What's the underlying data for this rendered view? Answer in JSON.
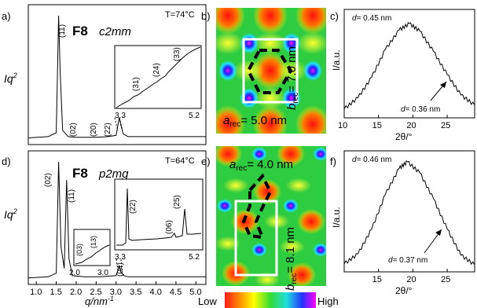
{
  "panels": {
    "a": {
      "label": "a)",
      "material": "F8",
      "phase": "c2mm",
      "temperature": "T=74°C",
      "ylabel": "Iq",
      "ylabel_sup": "2",
      "peaks": [
        "(11)",
        "(02)",
        "(20)",
        "(22)"
      ],
      "inset": {
        "peaks": [
          "(31)",
          "(24)",
          "(33)"
        ],
        "xmin": "3.3",
        "xmax": "5.2"
      }
    },
    "b": {
      "label": "b)",
      "a_rec": "= 5.0 nm",
      "b_rec": "= 7.0 nm",
      "a_sym": "a",
      "b_sym": "b",
      "sub": "rec"
    },
    "c": {
      "label": "c)",
      "d_peak": "= 0.45 nm",
      "d_shoulder": "= 0.36 nm",
      "d_sym": "d",
      "ylabel": "I/a.u.",
      "xlabel": "2θ/°"
    },
    "d": {
      "label": "d)",
      "material": "F8",
      "phase": "p2mg",
      "temperature": "T=64°C",
      "ylabel": "Iq",
      "ylabel_sup": "2",
      "peaks": [
        "(02)",
        "(11)",
        "(04)"
      ],
      "inset_left": {
        "peaks": [
          "(03)",
          "(13)"
        ],
        "xmin": "2.0",
        "xmax": "3.0"
      },
      "inset_right": {
        "peaks": [
          "(22)",
          "(06)",
          "(25)"
        ],
        "xmin": "3.3",
        "xmax": "5.2"
      },
      "xlabel": "q/nm",
      "xlabel_sup": "-1"
    },
    "e": {
      "label": "e)",
      "a_rec": "= 4.0 nm",
      "b_rec": "= 8.1 nm",
      "a_sym": "a",
      "b_sym": "b",
      "sub": "rec"
    },
    "f": {
      "label": "f)",
      "d_peak": "= 0.46 nm",
      "d_shoulder": "= 0.37 nm",
      "d_sym": "d",
      "ylabel": "I/a.u.",
      "xlabel": "2θ/°"
    }
  },
  "colorbar": {
    "low": "Low",
    "high": "High"
  },
  "chart_data": [
    {
      "type": "line",
      "panel": "a",
      "xlim": [
        0.8,
        5.25
      ],
      "series": [
        {
          "x": [
            0.8,
            1.3,
            1.5,
            1.56,
            1.6,
            1.66,
            1.8,
            2.0,
            2.2,
            2.5,
            2.8,
            3.0,
            3.08,
            3.12,
            3.18,
            3.3,
            3.6,
            4.0,
            4.5,
            5.0,
            5.25
          ],
          "y": [
            0.04,
            0.05,
            0.08,
            1.0,
            0.55,
            0.1,
            0.05,
            0.045,
            0.045,
            0.045,
            0.05,
            0.06,
            0.2,
            0.14,
            0.07,
            0.05,
            0.05,
            0.05,
            0.05,
            0.05,
            0.05
          ]
        }
      ]
    },
    {
      "type": "line",
      "panel": "c",
      "xlabel": "2θ/°",
      "ylabel": "I/a.u.",
      "xlim": [
        10,
        29
      ],
      "xticks": [
        10,
        15,
        20,
        25
      ],
      "series": [
        {
          "x": [
            10,
            12,
            14,
            16,
            18,
            19.5,
            21,
            23,
            25,
            27,
            29
          ],
          "y": [
            0.08,
            0.2,
            0.42,
            0.72,
            0.93,
            1.0,
            0.92,
            0.7,
            0.45,
            0.23,
            0.12
          ]
        }
      ]
    },
    {
      "type": "line",
      "panel": "d",
      "xlabel": "q/nm-1",
      "xlim": [
        0.8,
        5.25
      ],
      "xticks": [
        1.0,
        1.5,
        2.0,
        2.5,
        3.0,
        3.5,
        4.0,
        4.5,
        5.0
      ],
      "series": [
        {
          "x": [
            0.8,
            1.3,
            1.5,
            1.56,
            1.62,
            1.7,
            1.76,
            1.82,
            1.9,
            2.2,
            2.6,
            3.0,
            3.08,
            3.12,
            3.2,
            3.3,
            3.6,
            4.0,
            4.5,
            5.0,
            5.25
          ],
          "y": [
            0.04,
            0.05,
            0.08,
            1.0,
            0.3,
            0.12,
            0.85,
            0.2,
            0.06,
            0.05,
            0.05,
            0.06,
            0.14,
            0.09,
            0.06,
            0.05,
            0.05,
            0.05,
            0.05,
            0.05,
            0.05
          ]
        }
      ]
    },
    {
      "type": "line",
      "panel": "f",
      "xlabel": "2θ/°",
      "ylabel": "I/a.u.",
      "xlim": [
        10,
        29
      ],
      "xticks": [
        15,
        20,
        25
      ],
      "series": [
        {
          "x": [
            10,
            12,
            14,
            16,
            18,
            19.2,
            21,
            23,
            25,
            27,
            29
          ],
          "y": [
            0.06,
            0.15,
            0.38,
            0.7,
            0.94,
            1.0,
            0.9,
            0.66,
            0.38,
            0.14,
            0.05
          ]
        }
      ]
    }
  ]
}
